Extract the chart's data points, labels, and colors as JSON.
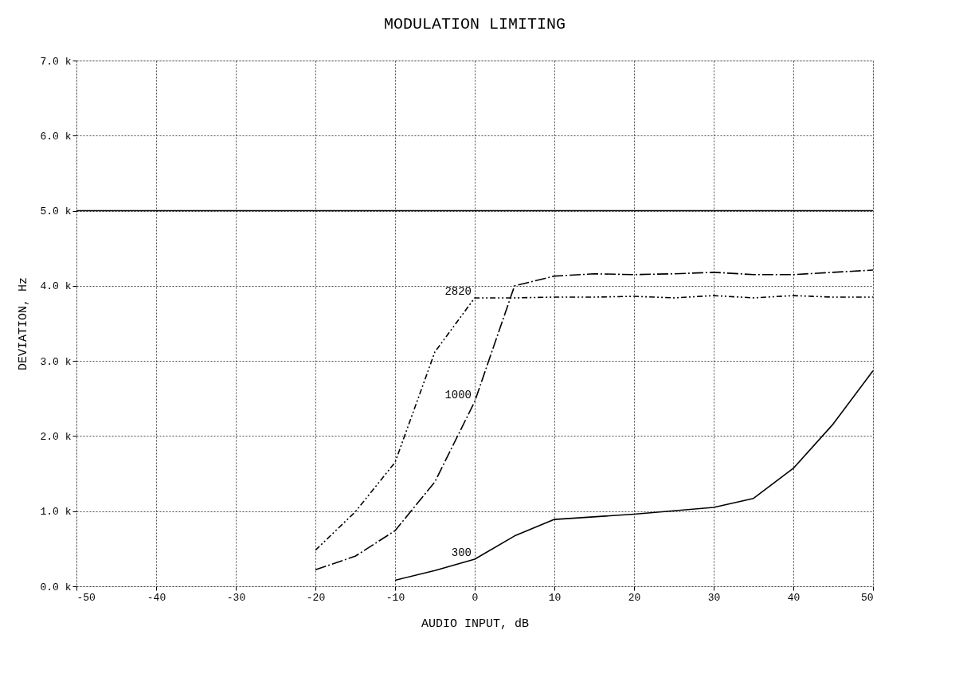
{
  "chart_data": {
    "type": "line",
    "title": "MODULATION LIMITING",
    "xlabel": "AUDIO INPUT, dB",
    "ylabel": "DEVIATION, Hz",
    "xlim": [
      -50,
      50
    ],
    "xticks": [
      -50,
      -40,
      -30,
      -20,
      -10,
      0,
      10,
      20,
      30,
      40,
      50
    ],
    "ylim": [
      0,
      7000
    ],
    "yticks": [
      {
        "value": 0,
        "label": "0.0 k"
      },
      {
        "value": 1000,
        "label": "1.0 k"
      },
      {
        "value": 2000,
        "label": "2.0 k"
      },
      {
        "value": 3000,
        "label": "3.0 k"
      },
      {
        "value": 4000,
        "label": "4.0 k"
      },
      {
        "value": 5000,
        "label": "5.0 k"
      },
      {
        "value": 6000,
        "label": "6.0 k"
      },
      {
        "value": 7000,
        "label": "7.0 k"
      }
    ],
    "grid": true,
    "marker": "none",
    "ref_lines": [
      {
        "axis": "y",
        "value": 5000,
        "color": "#000000",
        "line_style": "solid"
      }
    ],
    "series": [
      {
        "name": "300",
        "color": "#000000",
        "line_style": "solid",
        "x": [
          -10,
          -5,
          0,
          5,
          10,
          20,
          30,
          35,
          40,
          45,
          50
        ],
        "values": [
          80,
          210,
          360,
          670,
          890,
          960,
          1050,
          1170,
          1570,
          2160,
          2870
        ]
      },
      {
        "name": "1000",
        "color": "#000000",
        "line_style": "dashed",
        "x": [
          -20,
          -15,
          -10,
          -5,
          0,
          5,
          10,
          15,
          20,
          25,
          30,
          35,
          40,
          45,
          50
        ],
        "values": [
          220,
          400,
          740,
          1390,
          2460,
          4000,
          4130,
          4160,
          4150,
          4160,
          4180,
          4150,
          4150,
          4180,
          4210
        ]
      },
      {
        "name": "2820",
        "color": "#000000",
        "line_style": "dotted",
        "x": [
          -20,
          -15,
          -10,
          -5,
          0,
          5,
          10,
          15,
          20,
          25,
          30,
          35,
          40,
          45,
          50
        ],
        "values": [
          480,
          990,
          1650,
          3120,
          3840,
          3840,
          3850,
          3850,
          3860,
          3840,
          3870,
          3840,
          3870,
          3850,
          3850
        ]
      }
    ]
  }
}
